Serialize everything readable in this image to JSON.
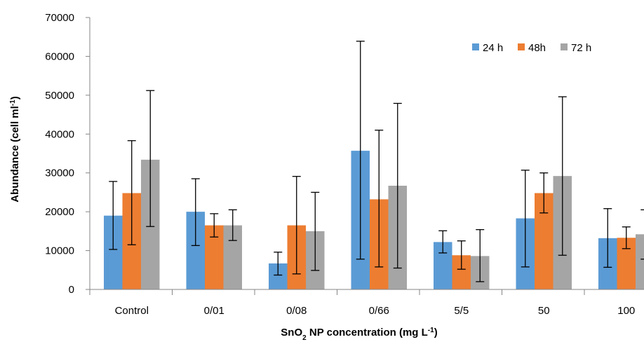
{
  "chart_data": {
    "type": "bar",
    "ylim": [
      0,
      70000
    ],
    "y_ticks": [
      "0",
      "10000",
      "20000",
      "30000",
      "40000",
      "50000",
      "60000",
      "70000"
    ],
    "categories": [
      "Control",
      "0/01",
      "0/08",
      "0/66",
      "5/5",
      "50",
      "100"
    ],
    "xlabel": {
      "main": "SnO",
      "sub": "2",
      "rest": " NP concentration (mg L",
      "sup": "-1",
      "end": ")"
    },
    "ylabel": {
      "main": "Abundance  (cell ml",
      "sup": "-1",
      "end": ")"
    },
    "legend_position": "top-right",
    "series": [
      {
        "name": "24 h",
        "color": "#5B9BD5",
        "values": [
          19000,
          20000,
          6700,
          35700,
          12200,
          18300,
          13200
        ],
        "error_low": [
          10300,
          11300,
          3700,
          7800,
          9400,
          5800,
          5700
        ],
        "error_high": [
          27800,
          28500,
          9600,
          63900,
          15100,
          30700,
          20800
        ]
      },
      {
        "name": "48h",
        "color": "#ED7D31",
        "values": [
          24800,
          16500,
          16500,
          23200,
          8800,
          24800,
          13300
        ],
        "error_low": [
          11500,
          13500,
          4000,
          5800,
          5200,
          19700,
          10500
        ],
        "error_high": [
          38300,
          19500,
          29100,
          41000,
          12500,
          30000,
          16100
        ]
      },
      {
        "name": "72 h",
        "color": "#A5A5A5",
        "values": [
          33400,
          16500,
          15000,
          26700,
          8600,
          29200,
          14200
        ],
        "error_low": [
          16200,
          12600,
          4900,
          5500,
          2000,
          8800,
          7800
        ],
        "error_high": [
          51200,
          20500,
          25000,
          47900,
          15400,
          49600,
          20500
        ]
      }
    ]
  }
}
